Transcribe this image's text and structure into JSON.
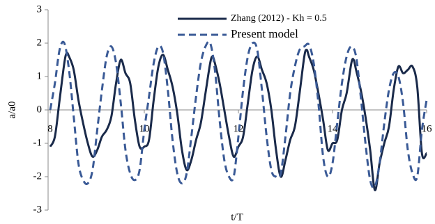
{
  "chart_data": {
    "type": "line",
    "x_label": "t/T",
    "y_label": "a/a0",
    "xlim": [
      8,
      16
    ],
    "ylim": [
      -3,
      3
    ],
    "xticks": [
      8,
      10,
      12,
      14,
      16
    ],
    "yticks": [
      -3,
      -2,
      -1,
      0,
      1,
      2,
      3
    ],
    "legend": "top",
    "series": [
      {
        "name": "Zhang (2012) - Kh = 0.5",
        "color": "#1a2a4a",
        "dash": false,
        "x": [
          8.0,
          8.1,
          8.2,
          8.3,
          8.35,
          8.4,
          8.5,
          8.6,
          8.7,
          8.8,
          8.9,
          9.0,
          9.1,
          9.2,
          9.3,
          9.4,
          9.5,
          9.6,
          9.7,
          9.8,
          9.9,
          10.0,
          10.1,
          10.2,
          10.3,
          10.4,
          10.5,
          10.6,
          10.7,
          10.8,
          10.9,
          11.0,
          11.1,
          11.2,
          11.3,
          11.4,
          11.45,
          11.5,
          11.6,
          11.7,
          11.8,
          11.9,
          12.0,
          12.1,
          12.2,
          12.3,
          12.4,
          12.5,
          12.6,
          12.7,
          12.8,
          12.9,
          13.0,
          13.1,
          13.2,
          13.3,
          13.4,
          13.45,
          13.5,
          13.6,
          13.7,
          13.8,
          13.9,
          14.0,
          14.1,
          14.2,
          14.3,
          14.4,
          14.45,
          14.5,
          14.6,
          14.7,
          14.8,
          14.9,
          15.0,
          15.1,
          15.2,
          15.3,
          15.4,
          15.5,
          15.6,
          15.7,
          15.8,
          15.9,
          16.0
        ],
        "values": [
          -1.1,
          -0.8,
          0.3,
          1.4,
          1.7,
          1.6,
          1.2,
          0.3,
          -0.4,
          -1.0,
          -1.4,
          -1.2,
          -0.8,
          -0.6,
          -0.2,
          0.8,
          1.5,
          1.1,
          0.8,
          -0.3,
          -1.1,
          -1.1,
          -0.9,
          0.3,
          1.3,
          1.65,
          1.2,
          0.7,
          -0.1,
          -1.2,
          -1.8,
          -1.5,
          -0.9,
          -0.4,
          0.5,
          1.4,
          1.6,
          1.4,
          0.8,
          0.0,
          -0.8,
          -1.4,
          -1.1,
          -0.8,
          0.2,
          1.2,
          1.6,
          1.2,
          0.8,
          0.0,
          -1.2,
          -2.0,
          -1.5,
          -0.9,
          -0.5,
          0.5,
          1.6,
          1.8,
          1.6,
          1.2,
          0.5,
          -0.3,
          -1.2,
          -1.0,
          -0.9,
          0.0,
          0.5,
          1.4,
          1.5,
          1.2,
          0.6,
          -0.2,
          -1.2,
          -2.4,
          -1.6,
          -1.0,
          -0.5,
          0.6,
          1.3,
          1.1,
          1.2,
          1.3,
          0.7,
          -1.3,
          -1.3
        ]
      },
      {
        "name": "Present model",
        "color": "#3a5a96",
        "dash": true,
        "x": [
          8.0,
          8.1,
          8.2,
          8.3,
          8.4,
          8.5,
          8.6,
          8.7,
          8.8,
          8.9,
          9.0,
          9.1,
          9.2,
          9.3,
          9.4,
          9.5,
          9.6,
          9.7,
          9.8,
          9.9,
          10.0,
          10.1,
          10.2,
          10.3,
          10.4,
          10.5,
          10.6,
          10.7,
          10.8,
          10.9,
          11.0,
          11.1,
          11.2,
          11.3,
          11.4,
          11.5,
          11.6,
          11.7,
          11.8,
          11.9,
          12.0,
          12.1,
          12.2,
          12.3,
          12.4,
          12.5,
          12.6,
          12.7,
          12.8,
          12.9,
          13.0,
          13.1,
          13.2,
          13.3,
          13.4,
          13.5,
          13.6,
          13.7,
          13.8,
          13.9,
          14.0,
          14.1,
          14.2,
          14.3,
          14.4,
          14.5,
          14.6,
          14.7,
          14.8,
          14.9,
          15.0,
          15.1,
          15.2,
          15.3,
          15.4,
          15.5,
          15.6,
          15.7,
          15.8,
          15.9,
          16.0
        ],
        "values": [
          0.0,
          0.8,
          1.8,
          2.0,
          1.2,
          -0.2,
          -1.6,
          -2.1,
          -2.2,
          -1.8,
          -0.6,
          0.6,
          1.6,
          1.9,
          1.4,
          0.2,
          -1.2,
          -1.9,
          -2.1,
          -1.8,
          -0.6,
          0.4,
          1.4,
          1.9,
          1.7,
          0.6,
          -0.9,
          -1.9,
          -2.2,
          -1.9,
          -0.8,
          0.4,
          1.4,
          1.9,
          2.0,
          1.2,
          -0.3,
          -1.5,
          -2.0,
          -2.0,
          -0.8,
          0.6,
          1.6,
          2.0,
          1.8,
          0.6,
          -0.8,
          -1.8,
          -2.0,
          -1.9,
          -0.8,
          0.5,
          1.3,
          1.8,
          1.9,
          1.95,
          1.4,
          0.2,
          -1.4,
          -2.0,
          -1.6,
          -0.4,
          0.8,
          1.6,
          1.9,
          1.6,
          0.4,
          -1.0,
          -2.1,
          -2.3,
          -1.6,
          -0.4,
          0.6,
          1.1,
          1.0,
          0.2,
          -1.2,
          -1.9,
          -2.0,
          -0.6,
          0.3
        ]
      }
    ]
  }
}
